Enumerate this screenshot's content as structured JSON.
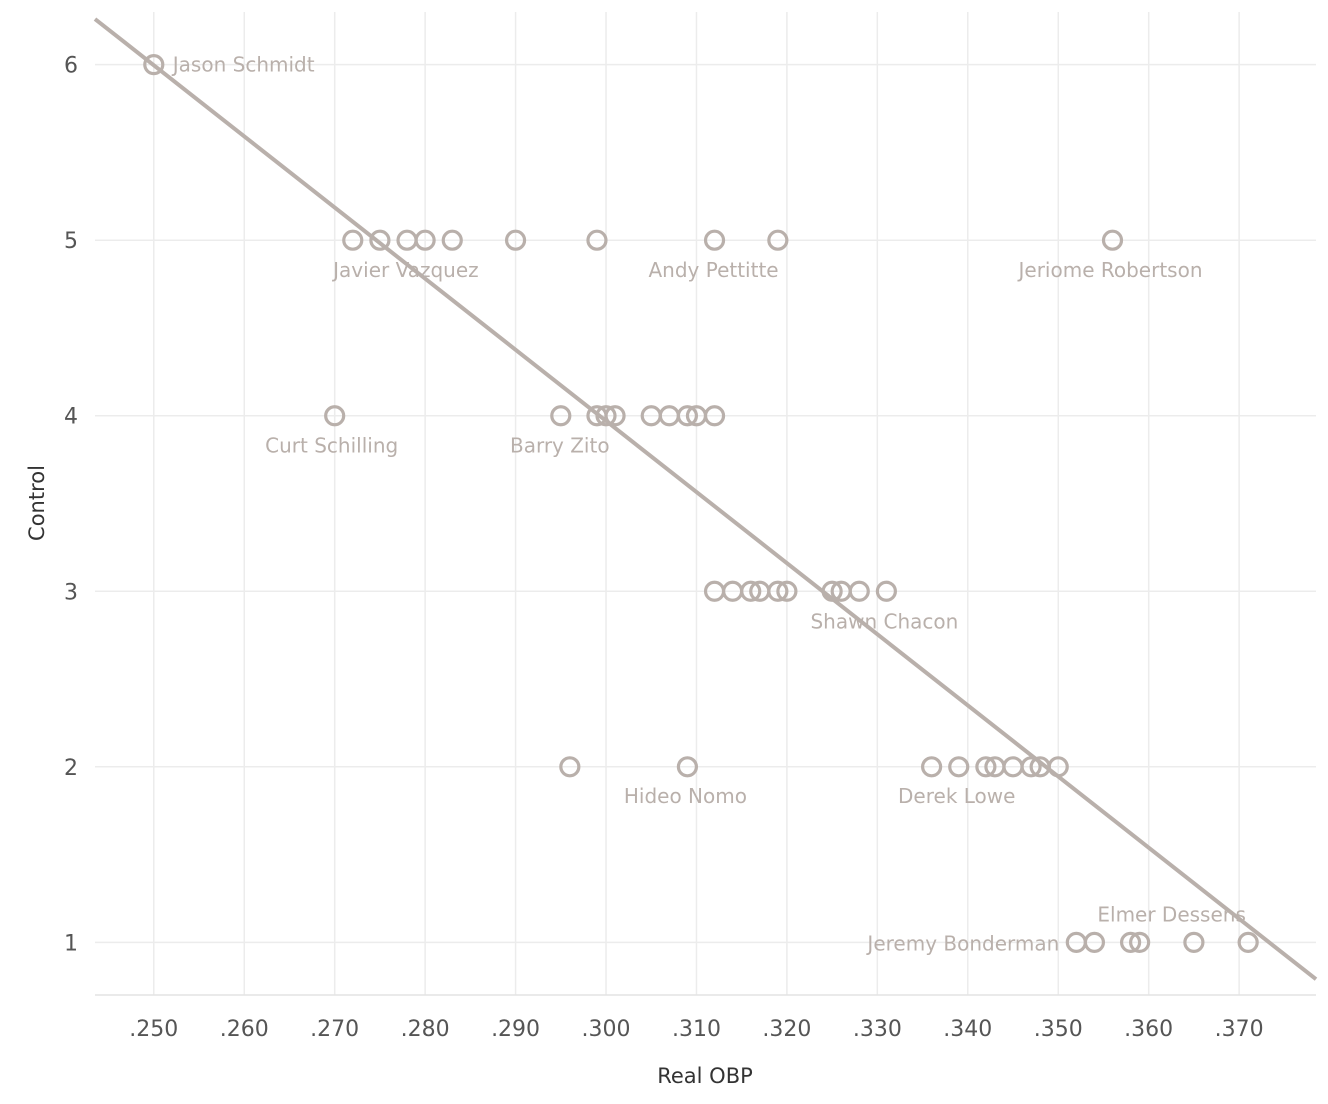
{
  "chart_data": {
    "type": "scatter",
    "title": "",
    "xlabel": "Real OBP",
    "ylabel": "Control",
    "xlim": [
      0.2435,
      0.3785
    ],
    "ylim": [
      0.7,
      6.3
    ],
    "x_ticks": [
      0.25,
      0.26,
      0.27,
      0.28,
      0.29,
      0.3,
      0.31,
      0.32,
      0.33,
      0.34,
      0.35,
      0.36,
      0.37
    ],
    "x_tick_labels": [
      ".250",
      ".260",
      ".270",
      ".280",
      ".290",
      ".300",
      ".310",
      ".320",
      ".330",
      ".340",
      ".350",
      ".360",
      ".370"
    ],
    "y_ticks": [
      1,
      2,
      3,
      4,
      5,
      6
    ],
    "y_tick_labels": [
      "1",
      "2",
      "3",
      "4",
      "5",
      "6"
    ],
    "grid": true,
    "color": "#b9b0ab",
    "trend_line": {
      "type": "linear",
      "x": [
        0.2435,
        0.3785
      ],
      "y": [
        6.26,
        0.79
      ]
    },
    "points": [
      {
        "x": 0.25,
        "y": 6,
        "label": "Jason Schmidt"
      },
      {
        "x": 0.272,
        "y": 5
      },
      {
        "x": 0.275,
        "y": 5,
        "label": "Javier Vazquez"
      },
      {
        "x": 0.278,
        "y": 5
      },
      {
        "x": 0.28,
        "y": 5
      },
      {
        "x": 0.283,
        "y": 5
      },
      {
        "x": 0.29,
        "y": 5
      },
      {
        "x": 0.299,
        "y": 5
      },
      {
        "x": 0.312,
        "y": 5,
        "label": "Andy Pettitte"
      },
      {
        "x": 0.319,
        "y": 5
      },
      {
        "x": 0.356,
        "y": 5,
        "label": "Jeriome Robertson"
      },
      {
        "x": 0.27,
        "y": 4,
        "label": "Curt Schilling"
      },
      {
        "x": 0.295,
        "y": 4,
        "label": "Barry Zito"
      },
      {
        "x": 0.299,
        "y": 4
      },
      {
        "x": 0.3,
        "y": 4
      },
      {
        "x": 0.301,
        "y": 4
      },
      {
        "x": 0.305,
        "y": 4
      },
      {
        "x": 0.307,
        "y": 4
      },
      {
        "x": 0.309,
        "y": 4
      },
      {
        "x": 0.31,
        "y": 4
      },
      {
        "x": 0.312,
        "y": 4
      },
      {
        "x": 0.312,
        "y": 3
      },
      {
        "x": 0.314,
        "y": 3
      },
      {
        "x": 0.316,
        "y": 3
      },
      {
        "x": 0.317,
        "y": 3
      },
      {
        "x": 0.319,
        "y": 3
      },
      {
        "x": 0.32,
        "y": 3
      },
      {
        "x": 0.325,
        "y": 3
      },
      {
        "x": 0.326,
        "y": 3
      },
      {
        "x": 0.328,
        "y": 3
      },
      {
        "x": 0.331,
        "y": 3,
        "label": "Shawn Chacon"
      },
      {
        "x": 0.296,
        "y": 2
      },
      {
        "x": 0.309,
        "y": 2,
        "label": "Hideo Nomo"
      },
      {
        "x": 0.336,
        "y": 2
      },
      {
        "x": 0.339,
        "y": 2,
        "label": "Derek Lowe"
      },
      {
        "x": 0.342,
        "y": 2
      },
      {
        "x": 0.343,
        "y": 2
      },
      {
        "x": 0.345,
        "y": 2
      },
      {
        "x": 0.347,
        "y": 2
      },
      {
        "x": 0.348,
        "y": 2
      },
      {
        "x": 0.35,
        "y": 2
      },
      {
        "x": 0.352,
        "y": 1,
        "label": "Jeremy Bonderman"
      },
      {
        "x": 0.354,
        "y": 1
      },
      {
        "x": 0.358,
        "y": 1
      },
      {
        "x": 0.359,
        "y": 1,
        "label": "Elmer Dessens"
      },
      {
        "x": 0.365,
        "y": 1
      },
      {
        "x": 0.371,
        "y": 1
      }
    ]
  }
}
